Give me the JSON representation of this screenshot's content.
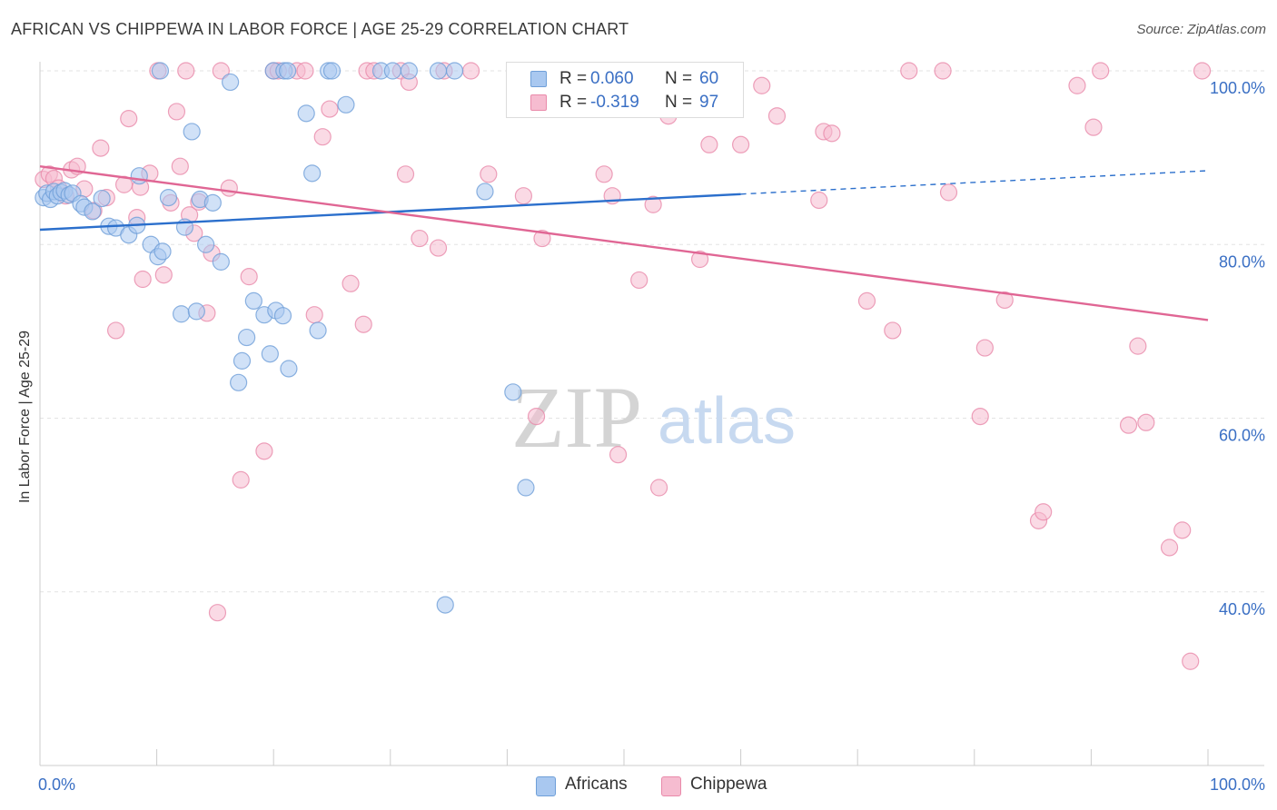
{
  "title": "AFRICAN VS CHIPPEWA IN LABOR FORCE | AGE 25-29 CORRELATION CHART",
  "source": "Source: ZipAtlas.com",
  "watermark": {
    "zip": "ZIP",
    "atlas": "atlas"
  },
  "legend_top": {
    "rows": [
      {
        "r_label": "R =",
        "r_value": "0.060",
        "n_label": "N =",
        "n_value": "60"
      },
      {
        "r_label": "R =",
        "r_value": "-0.319",
        "n_label": "N =",
        "n_value": "97"
      }
    ]
  },
  "colors": {
    "africans_fill": "#a9c8f0",
    "africans_stroke": "#6f9fd8",
    "africans_line": "#2b6fcc",
    "chippewa_fill": "#f6bcd0",
    "chippewa_stroke": "#e98aaa",
    "chippewa_line": "#e06694",
    "value_text": "#3a6fc4",
    "grid": "#e3e3e3"
  },
  "chart_data": {
    "type": "scatter",
    "ylabel": "In Labor Force | Age 25-29",
    "xlim": [
      0,
      100
    ],
    "ylim": [
      20,
      100
    ],
    "x_tick_labels": [
      "0.0%",
      "100.0%"
    ],
    "y_ticks": [
      40,
      60,
      80,
      100
    ],
    "y_tick_labels": [
      "40.0%",
      "60.0%",
      "80.0%",
      "100.0%"
    ],
    "grid": true,
    "legend_position": "bottom",
    "series": [
      {
        "name": "Africans",
        "r": 0.06,
        "n": 60,
        "trend": {
          "x0": 0,
          "y0": 81.7,
          "x1": 60,
          "y1": 85.8,
          "dash_to_x": 100,
          "dash_to_y": 88.5
        },
        "points": [
          [
            0.3,
            85.4
          ],
          [
            0.6,
            85.9
          ],
          [
            0.9,
            85.2
          ],
          [
            1.2,
            86.1
          ],
          [
            1.5,
            85.6
          ],
          [
            1.8,
            86.0
          ],
          [
            2.1,
            86.2
          ],
          [
            2.5,
            85.7
          ],
          [
            2.8,
            85.9
          ],
          [
            3.5,
            84.7
          ],
          [
            3.8,
            84.3
          ],
          [
            4.5,
            83.8
          ],
          [
            5.3,
            85.3
          ],
          [
            5.9,
            82.1
          ],
          [
            6.5,
            81.9
          ],
          [
            7.6,
            81.1
          ],
          [
            8.3,
            82.2
          ],
          [
            8.5,
            87.9
          ],
          [
            9.5,
            80.0
          ],
          [
            10.1,
            78.6
          ],
          [
            10.5,
            79.2
          ],
          [
            11.0,
            85.4
          ],
          [
            12.1,
            72.0
          ],
          [
            12.4,
            82.0
          ],
          [
            13.0,
            93.0
          ],
          [
            13.4,
            72.3
          ],
          [
            13.7,
            85.2
          ],
          [
            14.2,
            80.0
          ],
          [
            14.8,
            84.8
          ],
          [
            15.5,
            78.0
          ],
          [
            16.3,
            98.7
          ],
          [
            17.0,
            64.1
          ],
          [
            17.3,
            66.6
          ],
          [
            17.7,
            69.3
          ],
          [
            18.3,
            73.5
          ],
          [
            19.2,
            71.9
          ],
          [
            19.7,
            67.4
          ],
          [
            20.2,
            72.4
          ],
          [
            20.8,
            71.8
          ],
          [
            21.3,
            65.7
          ],
          [
            22.8,
            95.1
          ],
          [
            23.3,
            88.2
          ],
          [
            23.8,
            70.1
          ],
          [
            24.7,
            100
          ],
          [
            25.0,
            100
          ],
          [
            26.2,
            96.1
          ],
          [
            29.2,
            100
          ],
          [
            30.2,
            100
          ],
          [
            31.6,
            100
          ],
          [
            34.1,
            100
          ],
          [
            34.7,
            38.5
          ],
          [
            35.5,
            100
          ],
          [
            38.1,
            86.1
          ],
          [
            40.5,
            63.0
          ],
          [
            41.6,
            52.0
          ],
          [
            59.3,
            100
          ],
          [
            10.3,
            100
          ],
          [
            20.0,
            100
          ],
          [
            20.9,
            100
          ],
          [
            21.2,
            100
          ]
        ]
      },
      {
        "name": "Chippewa",
        "r": -0.319,
        "n": 97,
        "trend": {
          "x0": 0,
          "y0": 89.0,
          "x1": 100,
          "y1": 71.3
        },
        "points": [
          [
            0.3,
            87.5
          ],
          [
            0.8,
            88.1
          ],
          [
            1.2,
            87.6
          ],
          [
            1.6,
            86.5
          ],
          [
            2.2,
            85.6
          ],
          [
            2.7,
            88.6
          ],
          [
            3.2,
            89.0
          ],
          [
            3.8,
            86.4
          ],
          [
            4.6,
            83.9
          ],
          [
            5.2,
            91.1
          ],
          [
            5.7,
            85.4
          ],
          [
            6.5,
            70.1
          ],
          [
            7.2,
            86.9
          ],
          [
            7.6,
            94.5
          ],
          [
            8.3,
            83.1
          ],
          [
            8.6,
            86.6
          ],
          [
            8.8,
            76.0
          ],
          [
            9.4,
            88.2
          ],
          [
            10.1,
            100
          ],
          [
            10.6,
            76.5
          ],
          [
            11.2,
            84.8
          ],
          [
            11.7,
            95.3
          ],
          [
            12.0,
            89.0
          ],
          [
            12.5,
            100
          ],
          [
            12.8,
            83.4
          ],
          [
            13.2,
            81.3
          ],
          [
            13.6,
            84.9
          ],
          [
            14.3,
            72.1
          ],
          [
            14.7,
            79.0
          ],
          [
            15.2,
            37.6
          ],
          [
            15.5,
            100
          ],
          [
            16.2,
            86.5
          ],
          [
            17.2,
            52.9
          ],
          [
            17.9,
            76.3
          ],
          [
            19.2,
            56.2
          ],
          [
            20.0,
            100
          ],
          [
            20.4,
            100
          ],
          [
            22.0,
            100
          ],
          [
            22.7,
            100
          ],
          [
            23.5,
            71.9
          ],
          [
            24.2,
            92.4
          ],
          [
            24.8,
            95.6
          ],
          [
            26.6,
            75.5
          ],
          [
            27.7,
            70.8
          ],
          [
            28.0,
            100
          ],
          [
            28.6,
            100
          ],
          [
            30.9,
            100
          ],
          [
            31.3,
            88.1
          ],
          [
            31.6,
            98.7
          ],
          [
            32.5,
            80.7
          ],
          [
            34.1,
            79.6
          ],
          [
            34.6,
            100
          ],
          [
            36.9,
            100
          ],
          [
            38.4,
            88.1
          ],
          [
            41.4,
            85.6
          ],
          [
            42.5,
            60.2
          ],
          [
            43.0,
            80.7
          ],
          [
            44.0,
            97.6
          ],
          [
            44.9,
            100
          ],
          [
            45.5,
            100
          ],
          [
            46.0,
            100
          ],
          [
            48.3,
            88.1
          ],
          [
            49.0,
            85.6
          ],
          [
            49.5,
            55.8
          ],
          [
            51.3,
            75.9
          ],
          [
            52.5,
            84.6
          ],
          [
            53.0,
            52.0
          ],
          [
            53.8,
            94.8
          ],
          [
            56.5,
            78.3
          ],
          [
            57.3,
            91.5
          ],
          [
            59.3,
            100
          ],
          [
            60.0,
            91.5
          ],
          [
            61.8,
            98.3
          ],
          [
            63.1,
            94.8
          ],
          [
            66.7,
            85.1
          ],
          [
            67.1,
            93.0
          ],
          [
            67.8,
            92.8
          ],
          [
            70.8,
            73.5
          ],
          [
            73.0,
            70.1
          ],
          [
            74.4,
            100
          ],
          [
            77.3,
            100
          ],
          [
            77.8,
            86.0
          ],
          [
            80.5,
            60.2
          ],
          [
            80.9,
            68.1
          ],
          [
            82.6,
            73.6
          ],
          [
            85.5,
            48.2
          ],
          [
            85.9,
            49.2
          ],
          [
            88.8,
            98.3
          ],
          [
            90.2,
            93.5
          ],
          [
            90.8,
            100
          ],
          [
            93.2,
            59.2
          ],
          [
            94.0,
            68.3
          ],
          [
            94.7,
            59.5
          ],
          [
            96.7,
            45.1
          ],
          [
            97.8,
            47.1
          ],
          [
            98.5,
            32.0
          ],
          [
            99.5,
            100
          ]
        ]
      }
    ]
  }
}
